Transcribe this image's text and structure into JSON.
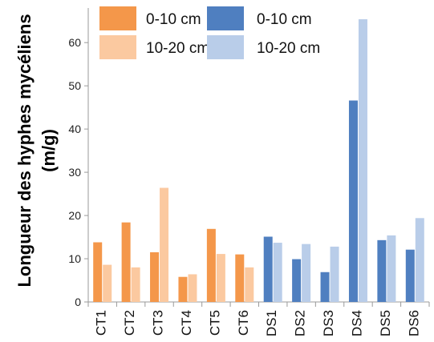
{
  "chart_data": {
    "type": "bar",
    "ylabel_line1": "Longueur des hyphes mycéliens",
    "ylabel_line2": "(m/g)",
    "xlabel": "",
    "ylim": [
      0,
      68
    ],
    "yticks": [
      0,
      10,
      20,
      30,
      40,
      50,
      60
    ],
    "grid": false,
    "legend_position": "top-left",
    "categories": [
      "CT1",
      "CT2",
      "CT3",
      "CT4",
      "CT5",
      "CT6",
      "DS1",
      "DS2",
      "DS3",
      "DS4",
      "DS5",
      "DS6"
    ],
    "series": [
      {
        "name": "0-10 cm",
        "group": "CT",
        "values": [
          13.8,
          18.4,
          11.5,
          5.8,
          16.9,
          11.0,
          null,
          null,
          null,
          null,
          null,
          null
        ]
      },
      {
        "name": "10-20 cm",
        "group": "CT",
        "values": [
          8.6,
          8.0,
          26.4,
          6.4,
          11.1,
          8.0,
          null,
          null,
          null,
          null,
          null,
          null
        ]
      },
      {
        "name": "0-10 cm",
        "group": "DS",
        "values": [
          null,
          null,
          null,
          null,
          null,
          null,
          15.1,
          9.9,
          6.9,
          46.6,
          14.3,
          12.1
        ]
      },
      {
        "name": "10-20 cm",
        "group": "DS",
        "values": [
          null,
          null,
          null,
          null,
          null,
          null,
          13.7,
          13.4,
          12.8,
          65.4,
          15.4,
          19.4
        ]
      }
    ],
    "colors": {
      "ct_0_10": "#f4974a",
      "ct_10_20": "#fbc9a0",
      "ds_0_10": "#4f7fc0",
      "ds_10_20": "#b9cde9",
      "axis": "#9a9a9a"
    },
    "legend": [
      {
        "label": "0-10 cm",
        "color_key": "ct_0_10"
      },
      {
        "label": "10-20 cm",
        "color_key": "ct_10_20"
      },
      {
        "label": "0-10 cm",
        "color_key": "ds_0_10"
      },
      {
        "label": "10-20 cm",
        "color_key": "ds_10_20"
      }
    ]
  }
}
